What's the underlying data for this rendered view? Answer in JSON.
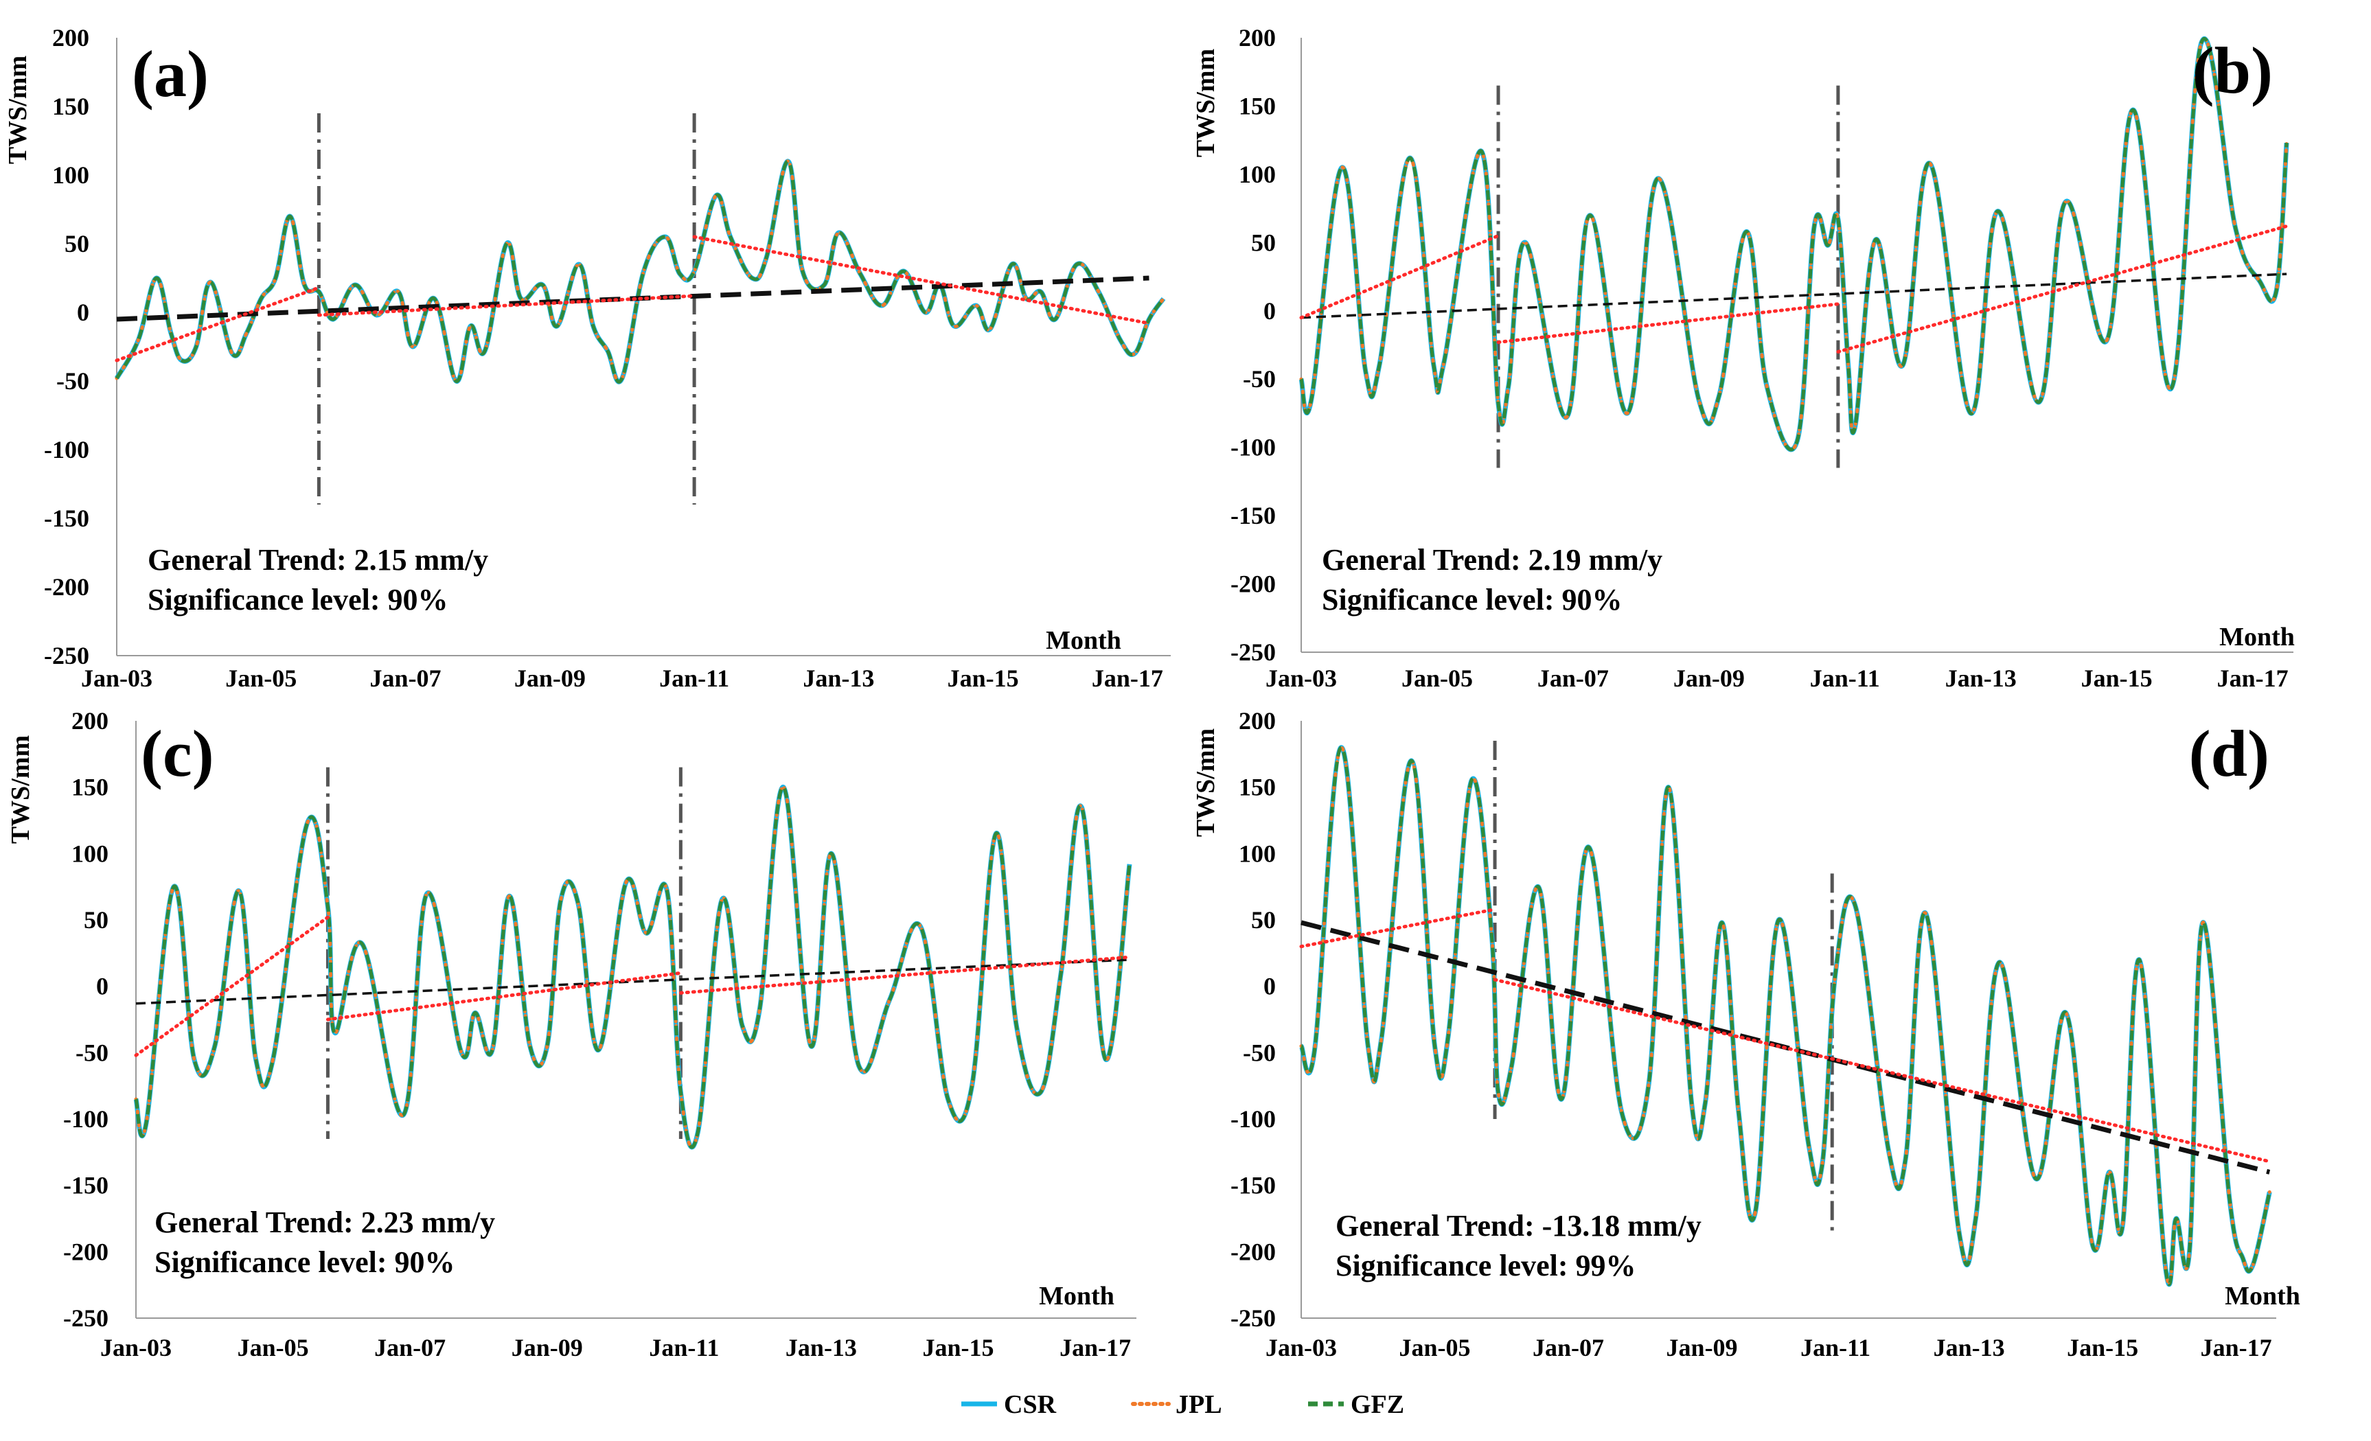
{
  "legend": [
    {
      "name": "CSR",
      "color": "#17b5e8",
      "style": "solid"
    },
    {
      "name": "JPL",
      "color": "#f07a2a",
      "style": "dotted"
    },
    {
      "name": "GFZ",
      "color": "#2f8a3a",
      "style": "dashed"
    }
  ],
  "chart_data": [
    {
      "id": "a",
      "panel_label": "(a)",
      "type": "line",
      "ylabel": "TWS/mm",
      "xlabel": "Month",
      "ylim": [
        -250,
        200
      ],
      "yticks": [
        200,
        150,
        100,
        50,
        0,
        -50,
        -100,
        -150,
        -200,
        -250
      ],
      "xlim": [
        2003.0,
        2017.6
      ],
      "xticks": [
        {
          "label": "Jan-03",
          "x": 2003
        },
        {
          "label": "Jan-05",
          "x": 2005
        },
        {
          "label": "Jan-07",
          "x": 2007
        },
        {
          "label": "Jan-09",
          "x": 2009
        },
        {
          "label": "Jan-11",
          "x": 2011
        },
        {
          "label": "Jan-13",
          "x": 2013
        },
        {
          "label": "Jan-15",
          "x": 2015
        },
        {
          "label": "Jan-17",
          "x": 2017
        }
      ],
      "annotation": {
        "trend": "General Trend: 2.15 mm/y",
        "significance": "Significance level: 90%"
      },
      "breakpoints": [
        {
          "x": 2005.8,
          "y_range": [
            -140,
            145
          ]
        },
        {
          "x": 2011.0,
          "y_range": [
            -140,
            145
          ]
        }
      ],
      "general_trend": {
        "x": [
          2003.0,
          2017.3
        ],
        "y": [
          -5,
          25
        ],
        "style": "thick-dashed"
      },
      "segment_trends": [
        {
          "x": [
            2003.0,
            2005.8
          ],
          "y": [
            -35,
            18
          ]
        },
        {
          "x": [
            2005.8,
            2011.0
          ],
          "y": [
            -2,
            12
          ]
        },
        {
          "x": [
            2011.0,
            2017.3
          ],
          "y": [
            55,
            -8
          ]
        }
      ],
      "series_points": {
        "x": [
          2003.0,
          2003.3,
          2003.55,
          2003.75,
          2003.9,
          2004.1,
          2004.3,
          2004.6,
          2004.8,
          2005.0,
          2005.2,
          2005.4,
          2005.6,
          2005.8,
          2006.0,
          2006.3,
          2006.6,
          2006.9,
          2007.1,
          2007.4,
          2007.7,
          2007.9,
          2008.1,
          2008.4,
          2008.6,
          2008.9,
          2009.1,
          2009.4,
          2009.6,
          2009.8,
          2010.0,
          2010.3,
          2010.6,
          2010.8,
          2011.0,
          2011.3,
          2011.5,
          2011.8,
          2012.0,
          2012.3,
          2012.5,
          2012.8,
          2013.0,
          2013.3,
          2013.6,
          2013.9,
          2014.2,
          2014.4,
          2014.6,
          2014.9,
          2015.1,
          2015.4,
          2015.6,
          2015.8,
          2016.0,
          2016.3,
          2016.6,
          2016.9,
          2017.1,
          2017.3,
          2017.5
        ],
        "y": [
          -48,
          -20,
          25,
          -15,
          -35,
          -25,
          22,
          -30,
          -15,
          10,
          25,
          70,
          20,
          15,
          -5,
          20,
          -2,
          15,
          -25,
          10,
          -50,
          -10,
          -28,
          50,
          10,
          20,
          -10,
          35,
          -10,
          -28,
          -48,
          30,
          55,
          28,
          30,
          85,
          55,
          25,
          40,
          110,
          30,
          20,
          58,
          28,
          5,
          30,
          0,
          20,
          -10,
          5,
          -12,
          35,
          10,
          15,
          -5,
          35,
          15,
          -20,
          -30,
          -5,
          10
        ]
      }
    },
    {
      "id": "b",
      "panel_label": "(b)",
      "type": "line",
      "ylabel": "TWS/mm",
      "xlabel": "Month",
      "ylim": [
        -250,
        200
      ],
      "yticks": [
        200,
        150,
        100,
        50,
        0,
        -50,
        -100,
        -150,
        -200,
        -250
      ],
      "xlim": [
        2003.0,
        2017.6
      ],
      "xticks": [
        {
          "label": "Jan-03",
          "x": 2003
        },
        {
          "label": "Jan-05",
          "x": 2005
        },
        {
          "label": "Jan-07",
          "x": 2007
        },
        {
          "label": "Jan-09",
          "x": 2009
        },
        {
          "label": "Jan-11",
          "x": 2011
        },
        {
          "label": "Jan-13",
          "x": 2013
        },
        {
          "label": "Jan-15",
          "x": 2015
        },
        {
          "label": "Jan-17",
          "x": 2017
        }
      ],
      "annotation": {
        "trend": "General Trend: 2.19 mm/y",
        "significance": "Significance level: 90%"
      },
      "breakpoints": [
        {
          "x": 2005.9,
          "y_range": [
            -115,
            165
          ]
        },
        {
          "x": 2010.9,
          "y_range": [
            -115,
            165
          ]
        }
      ],
      "general_trend": {
        "x": [
          2003.0,
          2017.5
        ],
        "y": [
          -5,
          27
        ],
        "style": "thin-dashed"
      },
      "segment_trends": [
        {
          "x": [
            2003.0,
            2005.9
          ],
          "y": [
            -5,
            55
          ]
        },
        {
          "x": [
            2005.9,
            2010.9
          ],
          "y": [
            -23,
            5
          ]
        },
        {
          "x": [
            2010.9,
            2017.5
          ],
          "y": [
            -30,
            62
          ]
        }
      ],
      "series_points": {
        "x": [
          2003.0,
          2003.15,
          2003.6,
          2003.95,
          2004.15,
          2004.6,
          2004.95,
          2005.1,
          2005.65,
          2005.9,
          2006.05,
          2006.3,
          2006.9,
          2007.25,
          2007.8,
          2008.25,
          2008.85,
          2009.15,
          2009.55,
          2009.85,
          2010.3,
          2010.55,
          2010.75,
          2010.9,
          2011.05,
          2011.15,
          2011.45,
          2011.85,
          2012.25,
          2012.85,
          2013.25,
          2013.85,
          2014.25,
          2014.85,
          2015.25,
          2015.8,
          2016.25,
          2016.75,
          2017.1,
          2017.35,
          2017.5
        ],
        "y": [
          -50,
          -65,
          105,
          -45,
          -40,
          112,
          -40,
          -38,
          117,
          -68,
          -55,
          50,
          -78,
          70,
          -75,
          97,
          -65,
          -62,
          58,
          -55,
          -95,
          62,
          48,
          67,
          -40,
          -85,
          52,
          -40,
          108,
          -75,
          73,
          -67,
          80,
          -22,
          147,
          -57,
          197,
          60,
          22,
          15,
          123
        ]
      }
    },
    {
      "id": "c",
      "panel_label": "(c)",
      "type": "line",
      "ylabel": "TWS/mm",
      "xlabel": "Month",
      "ylim": [
        -250,
        200
      ],
      "yticks": [
        200,
        150,
        100,
        50,
        0,
        -50,
        -100,
        -150,
        -200,
        -250
      ],
      "xlim": [
        2003.0,
        2017.6
      ],
      "xticks": [
        {
          "label": "Jan-03",
          "x": 2003
        },
        {
          "label": "Jan-05",
          "x": 2005
        },
        {
          "label": "Jan-07",
          "x": 2007
        },
        {
          "label": "Jan-09",
          "x": 2009
        },
        {
          "label": "Jan-11",
          "x": 2011
        },
        {
          "label": "Jan-13",
          "x": 2013
        },
        {
          "label": "Jan-15",
          "x": 2015
        },
        {
          "label": "Jan-17",
          "x": 2017
        }
      ],
      "annotation": {
        "trend": "General Trend: 2.23 mm/y",
        "significance": "Significance level: 90%"
      },
      "breakpoints": [
        {
          "x": 2005.8,
          "y_range": [
            -115,
            165
          ]
        },
        {
          "x": 2010.95,
          "y_range": [
            -115,
            165
          ]
        }
      ],
      "general_trend": {
        "x": [
          2003.0,
          2017.5
        ],
        "y": [
          -13,
          20
        ],
        "style": "thin-dashed"
      },
      "segment_trends": [
        {
          "x": [
            2003.0,
            2005.8
          ],
          "y": [
            -52,
            52
          ]
        },
        {
          "x": [
            2005.8,
            2010.95
          ],
          "y": [
            -25,
            10
          ]
        },
        {
          "x": [
            2010.95,
            2017.5
          ],
          "y": [
            -5,
            22
          ]
        }
      ],
      "series_points": {
        "x": [
          2003.0,
          2003.15,
          2003.55,
          2003.85,
          2004.15,
          2004.5,
          2004.75,
          2005.0,
          2005.5,
          2005.8,
          2005.9,
          2006.3,
          2006.9,
          2007.25,
          2007.75,
          2007.95,
          2008.2,
          2008.45,
          2008.75,
          2009.0,
          2009.2,
          2009.45,
          2009.75,
          2010.15,
          2010.45,
          2010.75,
          2010.95,
          2011.2,
          2011.55,
          2011.85,
          2012.1,
          2012.45,
          2012.85,
          2013.15,
          2013.55,
          2014.0,
          2014.45,
          2014.85,
          2015.2,
          2015.55,
          2015.85,
          2016.2,
          2016.5,
          2016.8,
          2017.15,
          2017.5
        ],
        "y": [
          -85,
          -103,
          75,
          -55,
          -45,
          72,
          -55,
          -55,
          123,
          60,
          -35,
          32,
          -97,
          70,
          -50,
          -20,
          -48,
          68,
          -45,
          -45,
          65,
          63,
          -48,
          78,
          40,
          72,
          -80,
          -110,
          65,
          -30,
          -18,
          150,
          -45,
          100,
          -60,
          -10,
          45,
          -85,
          -75,
          115,
          -30,
          -80,
          10,
          135,
          -55,
          92
        ]
      }
    },
    {
      "id": "d",
      "panel_label": "(d)",
      "type": "line",
      "ylabel": "TWS/mm",
      "xlabel": "Month",
      "ylim": [
        -250,
        200
      ],
      "yticks": [
        200,
        150,
        100,
        50,
        0,
        -50,
        -100,
        -150,
        -200,
        -250
      ],
      "xlim": [
        2003.0,
        2017.6
      ],
      "xticks": [
        {
          "label": "Jan-03",
          "x": 2003
        },
        {
          "label": "Jan-05",
          "x": 2005
        },
        {
          "label": "Jan-07",
          "x": 2007
        },
        {
          "label": "Jan-09",
          "x": 2009
        },
        {
          "label": "Jan-11",
          "x": 2011
        },
        {
          "label": "Jan-13",
          "x": 2013
        },
        {
          "label": "Jan-15",
          "x": 2015
        },
        {
          "label": "Jan-17",
          "x": 2017
        }
      ],
      "annotation": {
        "trend": "General Trend: -13.18 mm/y",
        "significance": "Significance level: 99%"
      },
      "breakpoints": [
        {
          "x": 2005.9,
          "y_range": [
            -100,
            185
          ]
        },
        {
          "x": 2010.95,
          "y_range": [
            -185,
            85
          ]
        }
      ],
      "general_trend": {
        "x": [
          2003.0,
          2017.5
        ],
        "y": [
          48,
          -140
        ],
        "style": "thick-dashed"
      },
      "segment_trends": [
        {
          "x": [
            2003.0,
            2005.9
          ],
          "y": [
            30,
            58
          ]
        },
        {
          "x": [
            2005.9,
            2017.5
          ],
          "y": [
            5,
            -132
          ]
        }
      ],
      "series_points": {
        "x": [
          2003.0,
          2003.2,
          2003.6,
          2004.0,
          2004.2,
          2004.65,
          2005.0,
          2005.2,
          2005.55,
          2005.85,
          2005.95,
          2006.15,
          2006.55,
          2006.9,
          2007.3,
          2007.8,
          2008.2,
          2008.5,
          2008.85,
          2009.05,
          2009.3,
          2009.55,
          2009.8,
          2010.15,
          2010.6,
          2010.8,
          2011.0,
          2011.3,
          2011.8,
          2012.05,
          2012.35,
          2012.85,
          2013.1,
          2013.45,
          2014.0,
          2014.45,
          2014.85,
          2015.1,
          2015.3,
          2015.55,
          2015.95,
          2016.1,
          2016.3,
          2016.5,
          2016.9,
          2017.1,
          2017.25,
          2017.5
        ],
        "y": [
          -45,
          -48,
          180,
          -45,
          -40,
          170,
          -45,
          -38,
          155,
          40,
          -80,
          -60,
          75,
          -85,
          105,
          -95,
          -75,
          150,
          -90,
          -88,
          48,
          -95,
          -170,
          50,
          -120,
          -135,
          10,
          60,
          -125,
          -130,
          55,
          -185,
          -175,
          18,
          -145,
          -20,
          -195,
          -140,
          -180,
          20,
          -215,
          -175,
          -200,
          48,
          -160,
          -205,
          -210,
          -155
        ]
      }
    }
  ]
}
